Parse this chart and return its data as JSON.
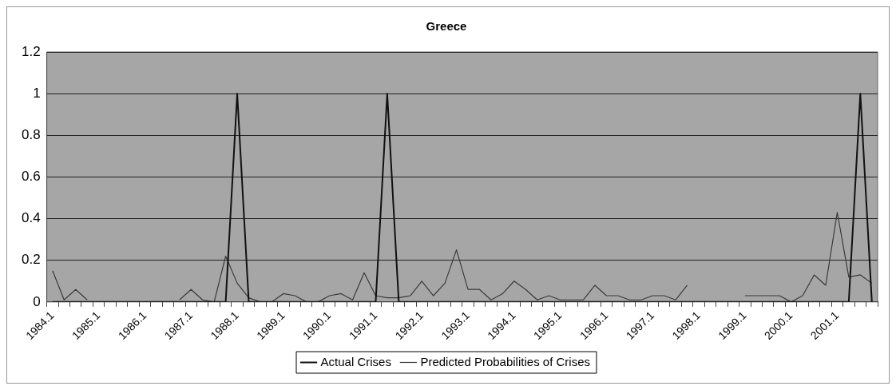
{
  "chart_data": {
    "type": "line",
    "title": "Greece",
    "categories": [
      "1984.1",
      null,
      null,
      null,
      "1985.1",
      null,
      null,
      null,
      "1986.1",
      null,
      null,
      null,
      "1987.1",
      null,
      null,
      null,
      "1988.1",
      null,
      null,
      null,
      "1989.1",
      null,
      null,
      null,
      "1990.1",
      null,
      null,
      null,
      "1991.1",
      null,
      null,
      null,
      "1992.1",
      null,
      null,
      null,
      "1993.1",
      null,
      null,
      null,
      "1994.1",
      null,
      null,
      null,
      "1995.1",
      null,
      null,
      null,
      "1996.1",
      null,
      null,
      null,
      "1997.1",
      null,
      null,
      null,
      "1998.1",
      null,
      null,
      null,
      "1999.1",
      null,
      null,
      null,
      "2000.1",
      null,
      null,
      null,
      "2001.1",
      null,
      null,
      null
    ],
    "series": [
      {
        "name": "Actual Crises",
        "color": "#111111",
        "values": [
          0,
          0,
          0,
          0,
          0,
          0,
          0,
          0,
          0,
          0,
          0,
          0,
          0,
          0,
          0,
          0,
          1,
          0,
          0,
          0,
          0,
          0,
          0,
          0,
          0,
          0,
          0,
          0,
          0,
          1,
          0,
          0,
          0,
          0,
          0,
          0,
          0,
          0,
          0,
          0,
          0,
          0,
          0,
          0,
          0,
          0,
          0,
          0,
          0,
          0,
          0,
          0,
          0,
          0,
          0,
          0,
          0,
          0,
          0,
          0,
          0,
          0,
          0,
          0,
          0,
          0,
          0,
          0,
          0,
          0,
          1,
          0
        ]
      },
      {
        "name": "Predicted Probabilities of Crises",
        "color": "#3a3a3a",
        "values": [
          0.15,
          0.01,
          0.06,
          0.01,
          null,
          null,
          null,
          null,
          null,
          null,
          null,
          0.01,
          0.06,
          0.01,
          0,
          0.22,
          0.09,
          0.02,
          0,
          0,
          0.04,
          0.03,
          0,
          0,
          0.03,
          0.04,
          0.01,
          0.14,
          0.03,
          0.02,
          0.02,
          0.03,
          0.1,
          0.03,
          0.09,
          0.25,
          0.06,
          0.06,
          0.01,
          0.04,
          0.1,
          0.06,
          0.01,
          0.03,
          0.01,
          0.01,
          0.01,
          0.08,
          0.03,
          0.03,
          0.01,
          0.01,
          0.03,
          0.03,
          0.01,
          0.08,
          null,
          null,
          null,
          null,
          0.03,
          0.03,
          0.03,
          0.03,
          0,
          0.03,
          0.13,
          0.08,
          0.43,
          0.12,
          0.13,
          0.09
        ]
      }
    ],
    "ylim": [
      0,
      1.2
    ],
    "yticks": [
      0,
      0.2,
      0.4,
      0.6,
      0.8,
      1,
      1.2
    ],
    "grid": "y",
    "legend": "bottom",
    "marker": "none",
    "line_style": "solid"
  }
}
